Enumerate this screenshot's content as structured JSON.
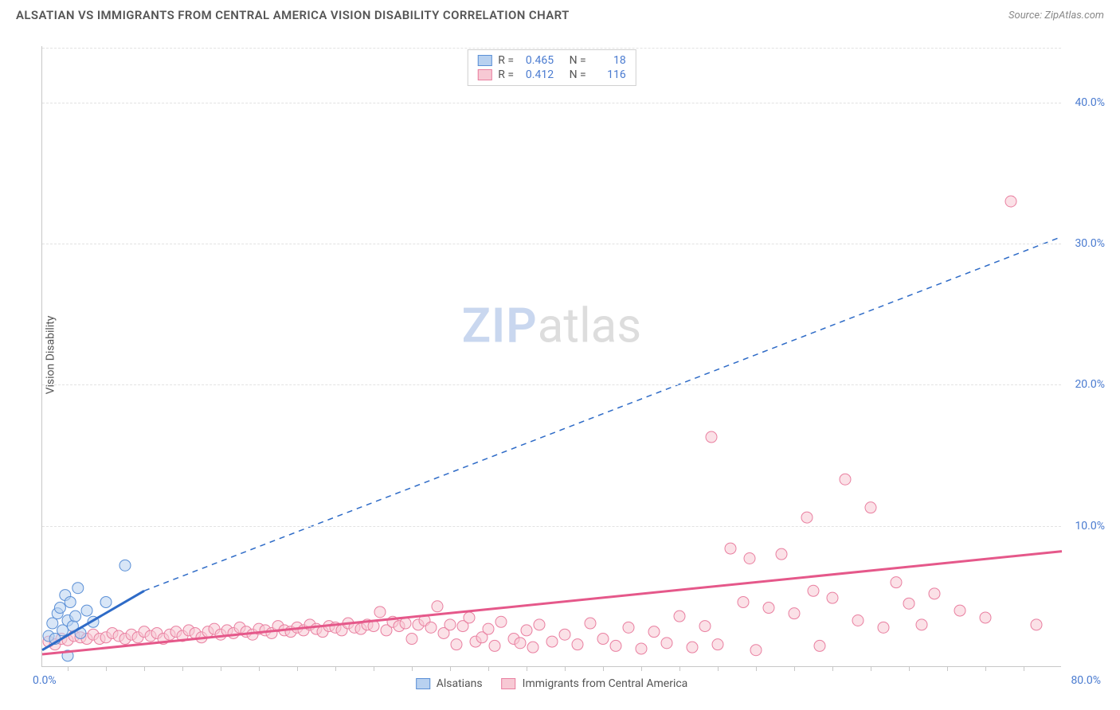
{
  "title": "ALSATIAN VS IMMIGRANTS FROM CENTRAL AMERICA VISION DISABILITY CORRELATION CHART",
  "source": "Source: ZipAtlas.com",
  "y_axis_label": "Vision Disability",
  "watermark": {
    "part1": "ZIP",
    "part2": "atlas"
  },
  "colors": {
    "blue_fill": "#b8d1f0",
    "blue_stroke": "#5a8fd6",
    "pink_fill": "#f7c9d4",
    "pink_stroke": "#e97fa0",
    "trend_blue": "#2e6bc7",
    "trend_pink": "#e5588a",
    "axis_text": "#4a7bd0",
    "grid": "#e2e2e2"
  },
  "chart": {
    "type": "scatter",
    "x_range": [
      0,
      80
    ],
    "y_range": [
      0,
      44
    ],
    "y_ticks": [
      10,
      20,
      30,
      40
    ],
    "y_tick_labels": [
      "10.0%",
      "20.0%",
      "30.0%",
      "40.0%"
    ],
    "x_label_start": "0.0%",
    "x_label_end": "80.0%",
    "x_tick_positions": [
      2,
      5,
      8,
      11,
      14,
      17,
      20,
      23,
      26,
      29,
      32,
      35,
      38,
      41,
      44,
      47,
      50,
      53,
      56,
      59,
      62,
      65,
      68,
      71,
      74,
      77
    ]
  },
  "stats": {
    "series1": {
      "r_label": "R =",
      "r": "0.465",
      "n_label": "N =",
      "n": "18"
    },
    "series2": {
      "r_label": "R =",
      "r": "0.412",
      "n_label": "N =",
      "n": "116"
    }
  },
  "legend": {
    "series1": "Alsatians",
    "series2": "Immigrants from Central America"
  },
  "trend_lines": {
    "blue_solid": {
      "x1": 0,
      "y1": 1.2,
      "x2": 8,
      "y2": 5.4
    },
    "blue_dashed": {
      "x1": 8,
      "y1": 5.4,
      "x2": 80,
      "y2": 30.5
    },
    "pink": {
      "x1": 0,
      "y1": 0.9,
      "x2": 80,
      "y2": 8.2
    }
  },
  "points_blue": [
    [
      0.5,
      2.2
    ],
    [
      0.8,
      3.1
    ],
    [
      1.0,
      2.0
    ],
    [
      1.2,
      3.8
    ],
    [
      1.4,
      4.2
    ],
    [
      1.6,
      2.6
    ],
    [
      1.8,
      5.1
    ],
    [
      2.0,
      3.3
    ],
    [
      2.2,
      4.6
    ],
    [
      2.4,
      2.9
    ],
    [
      2.6,
      3.6
    ],
    [
      2.8,
      5.6
    ],
    [
      3.0,
      2.4
    ],
    [
      3.5,
      4.0
    ],
    [
      4.0,
      3.2
    ],
    [
      5.0,
      4.6
    ],
    [
      6.5,
      7.2
    ],
    [
      2.0,
      0.8
    ]
  ],
  "points_pink": [
    [
      0.5,
      1.8
    ],
    [
      1,
      1.6
    ],
    [
      1.5,
      2.0
    ],
    [
      2,
      1.9
    ],
    [
      2.5,
      2.2
    ],
    [
      3,
      2.1
    ],
    [
      3.5,
      2.0
    ],
    [
      4,
      2.3
    ],
    [
      4.5,
      2.0
    ],
    [
      5,
      2.1
    ],
    [
      5.5,
      2.4
    ],
    [
      6,
      2.2
    ],
    [
      6.5,
      2.0
    ],
    [
      7,
      2.3
    ],
    [
      7.5,
      2.1
    ],
    [
      8,
      2.5
    ],
    [
      8.5,
      2.2
    ],
    [
      9,
      2.4
    ],
    [
      9.5,
      2.0
    ],
    [
      10,
      2.3
    ],
    [
      10.5,
      2.5
    ],
    [
      11,
      2.2
    ],
    [
      11.5,
      2.6
    ],
    [
      12,
      2.4
    ],
    [
      12.5,
      2.1
    ],
    [
      13,
      2.5
    ],
    [
      13.5,
      2.7
    ],
    [
      14,
      2.3
    ],
    [
      14.5,
      2.6
    ],
    [
      15,
      2.4
    ],
    [
      15.5,
      2.8
    ],
    [
      16,
      2.5
    ],
    [
      16.5,
      2.3
    ],
    [
      17,
      2.7
    ],
    [
      17.5,
      2.6
    ],
    [
      18,
      2.4
    ],
    [
      18.5,
      2.9
    ],
    [
      19,
      2.6
    ],
    [
      19.5,
      2.5
    ],
    [
      20,
      2.8
    ],
    [
      20.5,
      2.6
    ],
    [
      21,
      3.0
    ],
    [
      21.5,
      2.7
    ],
    [
      22,
      2.5
    ],
    [
      22.5,
      2.9
    ],
    [
      23,
      2.8
    ],
    [
      23.5,
      2.6
    ],
    [
      24,
      3.1
    ],
    [
      24.5,
      2.8
    ],
    [
      25,
      2.7
    ],
    [
      25.5,
      3.0
    ],
    [
      26,
      2.9
    ],
    [
      26.5,
      3.9
    ],
    [
      27,
      2.6
    ],
    [
      27.5,
      3.2
    ],
    [
      28,
      2.9
    ],
    [
      28.5,
      3.1
    ],
    [
      29,
      2.0
    ],
    [
      29.5,
      3.0
    ],
    [
      30,
      3.3
    ],
    [
      30.5,
      2.8
    ],
    [
      31,
      4.3
    ],
    [
      31.5,
      2.4
    ],
    [
      32,
      3.0
    ],
    [
      32.5,
      1.6
    ],
    [
      33,
      2.9
    ],
    [
      33.5,
      3.5
    ],
    [
      34,
      1.8
    ],
    [
      34.5,
      2.1
    ],
    [
      35,
      2.7
    ],
    [
      35.5,
      1.5
    ],
    [
      36,
      3.2
    ],
    [
      37,
      2.0
    ],
    [
      37.5,
      1.7
    ],
    [
      38,
      2.6
    ],
    [
      38.5,
      1.4
    ],
    [
      39,
      3.0
    ],
    [
      40,
      1.8
    ],
    [
      41,
      2.3
    ],
    [
      42,
      1.6
    ],
    [
      43,
      3.1
    ],
    [
      44,
      2.0
    ],
    [
      45,
      1.5
    ],
    [
      46,
      2.8
    ],
    [
      47,
      1.3
    ],
    [
      48,
      2.5
    ],
    [
      49,
      1.7
    ],
    [
      50,
      3.6
    ],
    [
      51,
      1.4
    ],
    [
      52,
      2.9
    ],
    [
      52.5,
      16.3
    ],
    [
      53,
      1.6
    ],
    [
      54,
      8.4
    ],
    [
      55,
      4.6
    ],
    [
      55.5,
      7.7
    ],
    [
      56,
      1.2
    ],
    [
      57,
      4.2
    ],
    [
      58,
      8.0
    ],
    [
      59,
      3.8
    ],
    [
      60,
      10.6
    ],
    [
      60.5,
      5.4
    ],
    [
      61,
      1.5
    ],
    [
      62,
      4.9
    ],
    [
      63,
      13.3
    ],
    [
      64,
      3.3
    ],
    [
      65,
      11.3
    ],
    [
      66,
      2.8
    ],
    [
      67,
      6.0
    ],
    [
      68,
      4.5
    ],
    [
      69,
      3.0
    ],
    [
      70,
      5.2
    ],
    [
      72,
      4.0
    ],
    [
      74,
      3.5
    ],
    [
      76,
      33.0
    ],
    [
      78,
      3.0
    ]
  ]
}
